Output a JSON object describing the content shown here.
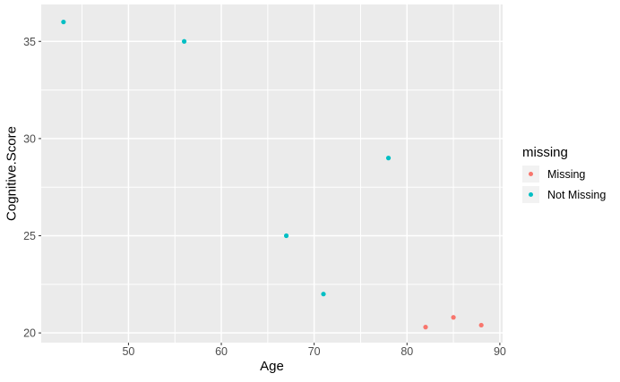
{
  "style": {
    "background": "#FFFFFF",
    "panel_background": "#EBEBEB",
    "grid_color": "#FFFFFF",
    "axis_text_color": "#4D4D4D",
    "axis_title_color": "#000000",
    "tick_mark_color": "#333333",
    "legend_key_background": "#F2F2F2"
  },
  "chart_data": {
    "type": "scatter",
    "title": "",
    "xlabel": "Age",
    "ylabel": "Cognitive.Score",
    "legend_title": "missing",
    "legend_position": "right",
    "grid": {
      "major": true,
      "minor": true
    },
    "xlim": [
      40.6,
      90.3
    ],
    "ylim": [
      19.5,
      36.9
    ],
    "x_ticks": [
      50,
      60,
      70,
      80,
      90
    ],
    "y_ticks": [
      20,
      25,
      30,
      35
    ],
    "x_minor_ticks": [
      45,
      55,
      65,
      75,
      85
    ],
    "y_minor_ticks": [
      22.5,
      27.5,
      32.5
    ],
    "series": [
      {
        "name": "Missing",
        "color": "#F8766D",
        "points": [
          {
            "x": 82,
            "y": 20.3
          },
          {
            "x": 85,
            "y": 20.8
          },
          {
            "x": 88,
            "y": 20.4
          }
        ]
      },
      {
        "name": "Not Missing",
        "color": "#00BFC4",
        "points": [
          {
            "x": 43,
            "y": 36
          },
          {
            "x": 56,
            "y": 35
          },
          {
            "x": 67,
            "y": 25
          },
          {
            "x": 71,
            "y": 22
          },
          {
            "x": 78,
            "y": 29
          }
        ]
      }
    ]
  }
}
